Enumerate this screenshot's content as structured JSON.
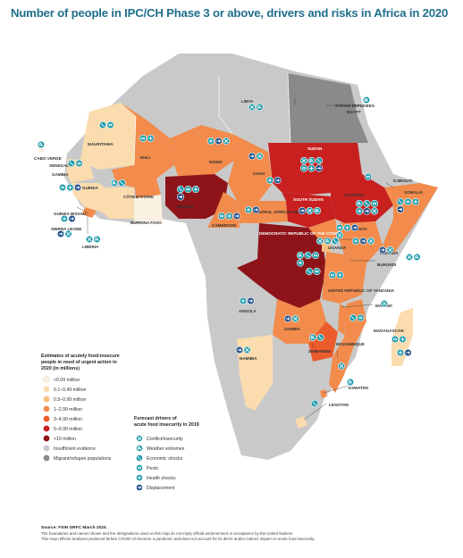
{
  "title": "Number of people in IPC/CH Phase 3 or above, drivers and risks in Africa in 2020",
  "colors": {
    "lt009": "#fbf1e3",
    "m01_049": "#fbdcae",
    "m05_099": "#f7c081",
    "m1_299": "#f28b4b",
    "m3_499": "#ec5b2c",
    "m5_999": "#c7201f",
    "gt10": "#8e1419",
    "insufficient": "#c9c9c9",
    "migrant": "#8a8a8a",
    "icon_teal": "#1b9aaa",
    "icon_blue": "#1d4e89",
    "title": "#1f6f8b"
  },
  "countries": {
    "libya": "LIBYA",
    "syrian_refugees": "SYRIAN REFUGEES",
    "egypt": "EGYPT",
    "mauritania": "MAURITANIA",
    "mali": "MALI",
    "niger": "NIGER",
    "chad": "CHAD",
    "sudan": "SUDAN",
    "cabo_verde": "CABO VERDE",
    "senegal": "SENEGAL",
    "gambia": "GAMBIA",
    "guinea": "GUINEA",
    "guinea_bissau": "GUINEA BISSAU",
    "sierra_leone": "SIERRA LEONE",
    "liberia": "LIBERIA",
    "cote_divoire": "CÔTE D'IVOIRE",
    "burkina_faso": "BURKINA FASO",
    "nigeria": "NIGERIA",
    "cameroon": "CAMEROON",
    "car": "CENTRAL AFRICAN REPUBLIC",
    "south_sudan": "SOUTH SUDAN",
    "ethiopia": "ETHIOPIA",
    "djibouti": "DJIBOUTI",
    "somalia": "SOMALIA",
    "uganda": "UGANDA",
    "kenya": "KENYA",
    "rwanda": "RWANDA",
    "burundi": "BURUNDI",
    "drc": "DEMOCRATIC REPUBLIC OF THE CONGO",
    "tanzania": "UNITED REPUBLIC OF TANZANIA",
    "angola": "ANGOLA",
    "zambia": "ZAMBIA",
    "malawi": "MALAWI",
    "zimbabwe": "ZIMBABWE",
    "mozambique": "MOZAMBIQUE",
    "madagascar": "MADAGASCAR",
    "namibia": "NAMIBIA",
    "eswatini": "ESWATINI",
    "lesotho": "LESOTHO"
  },
  "legend": {
    "title": "Estimates of acutely food-insecure people in need of urgent action in 2020 (in millions)",
    "items": [
      {
        "label": "<0.09 million",
        "key": "lt009"
      },
      {
        "label": "0.1–0.49 million",
        "key": "m01_049"
      },
      {
        "label": "0.5–0.99 million",
        "key": "m05_099"
      },
      {
        "label": "1–2.99 million",
        "key": "m1_299"
      },
      {
        "label": "3–4.99 million",
        "key": "m3_499"
      },
      {
        "label": "5–9.99 million",
        "key": "m5_999"
      },
      {
        "label": ">10 million",
        "key": "gt10"
      },
      {
        "label": "Insufficient evidence",
        "key": "insufficient"
      },
      {
        "label": "Migrant/refugee populations",
        "key": "migrant"
      }
    ]
  },
  "drivers": {
    "title": "Forecast drivers of acute food insecurity in 2019",
    "items": [
      {
        "label": "Conflict/insecurity",
        "icon": "conflict-icon"
      },
      {
        "label": "Weather extremes",
        "icon": "weather-icon"
      },
      {
        "label": "Economic shocks",
        "icon": "economic-icon"
      },
      {
        "label": "Pests",
        "icon": "pests-icon"
      },
      {
        "label": "Health shocks",
        "icon": "health-icon"
      },
      {
        "label": "Displacement",
        "icon": "displacement-icon"
      }
    ]
  },
  "source": {
    "label": "Source: FSIN GRFC March 2020.",
    "note1": "The boundaries and names shown and the designations used on this map do not imply official endorsement or acceptance by the United Nations.",
    "note2": "This map reflects analyses produced before COVID-19 became a pandemic and does not account for its direct and/or indirect impact on acute food insecurity."
  }
}
